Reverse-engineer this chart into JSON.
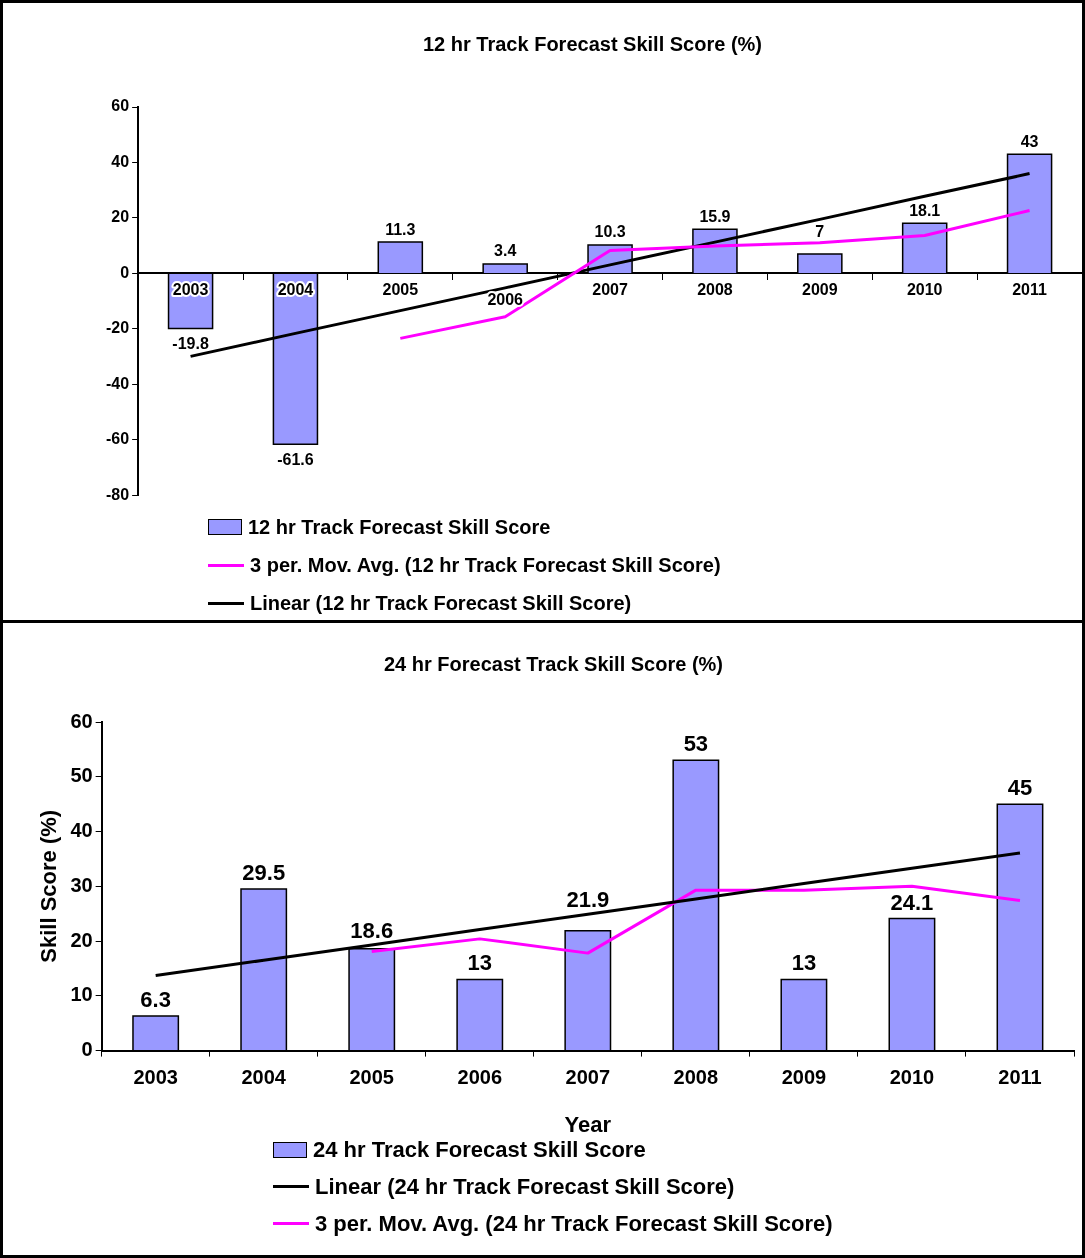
{
  "chart_data": [
    {
      "type": "bar",
      "title": "12 hr Track Forecast Skill Score (%)",
      "categories": [
        "2003",
        "2004",
        "2005",
        "2006",
        "2007",
        "2008",
        "2009",
        "2010",
        "2011"
      ],
      "series": [
        {
          "name": "12 hr Track Forecast Skill Score",
          "color": "#9999ff",
          "values": [
            -19.8,
            -61.6,
            11.3,
            3.4,
            10.3,
            15.9,
            7,
            18.1,
            43
          ],
          "value_labels": [
            "-19.8",
            "-61.6",
            "11.3",
            "3.4",
            "10.3",
            "15.9",
            "7",
            "18.1",
            "43"
          ]
        },
        {
          "name": "3 per. Mov. Avg. (12 hr Track Forecast Skill Score)",
          "type": "line",
          "color": "#ff00ff",
          "values": [
            null,
            null,
            -23.4,
            -15.6,
            8.3,
            9.9,
            11.1,
            13.7,
            22.7
          ]
        },
        {
          "name": "Linear (12 hr Track Forecast Skill Score)",
          "type": "line",
          "color": "#000000",
          "values": [
            -29.9,
            -21.6,
            -13.4,
            -5.2,
            3.1,
            11.3,
            19.5,
            27.8,
            36.0
          ]
        }
      ],
      "ylim": [
        -80,
        60
      ],
      "yticks": [
        -80,
        -60,
        -40,
        -20,
        0,
        20,
        40,
        60
      ],
      "grid": false,
      "legend": "bottom",
      "marker": "none"
    },
    {
      "type": "bar",
      "title": "24 hr Forecast Track Skill Score (%)",
      "xlabel": "Year",
      "ylabel": "Skill Score (%)",
      "categories": [
        "2003",
        "2004",
        "2005",
        "2006",
        "2007",
        "2008",
        "2009",
        "2010",
        "2011"
      ],
      "series": [
        {
          "name": "24 hr Track Forecast Skill Score",
          "color": "#9999ff",
          "values": [
            6.3,
            29.5,
            18.6,
            13,
            21.9,
            53,
            13,
            24.1,
            45
          ],
          "value_labels": [
            "6.3",
            "29.5",
            "18.6",
            "13",
            "21.9",
            "53",
            "13",
            "24.1",
            "45"
          ]
        },
        {
          "name": "Linear (24 hr Track Forecast Skill Score)",
          "type": "line",
          "color": "#000000",
          "values": [
            13.7,
            16.5,
            19.3,
            22.1,
            24.9,
            27.7,
            30.5,
            33.3,
            36.1
          ]
        },
        {
          "name": "3 per. Mov. Avg. (24 hr Track Forecast Skill Score)",
          "type": "line",
          "color": "#ff00ff",
          "values": [
            null,
            null,
            18.1,
            20.4,
            17.8,
            29.3,
            29.3,
            30.0,
            27.4
          ]
        }
      ],
      "ylim": [
        0,
        60
      ],
      "yticks": [
        0,
        10,
        20,
        30,
        40,
        50,
        60
      ],
      "grid": false,
      "legend": "bottom",
      "marker": "none"
    }
  ]
}
